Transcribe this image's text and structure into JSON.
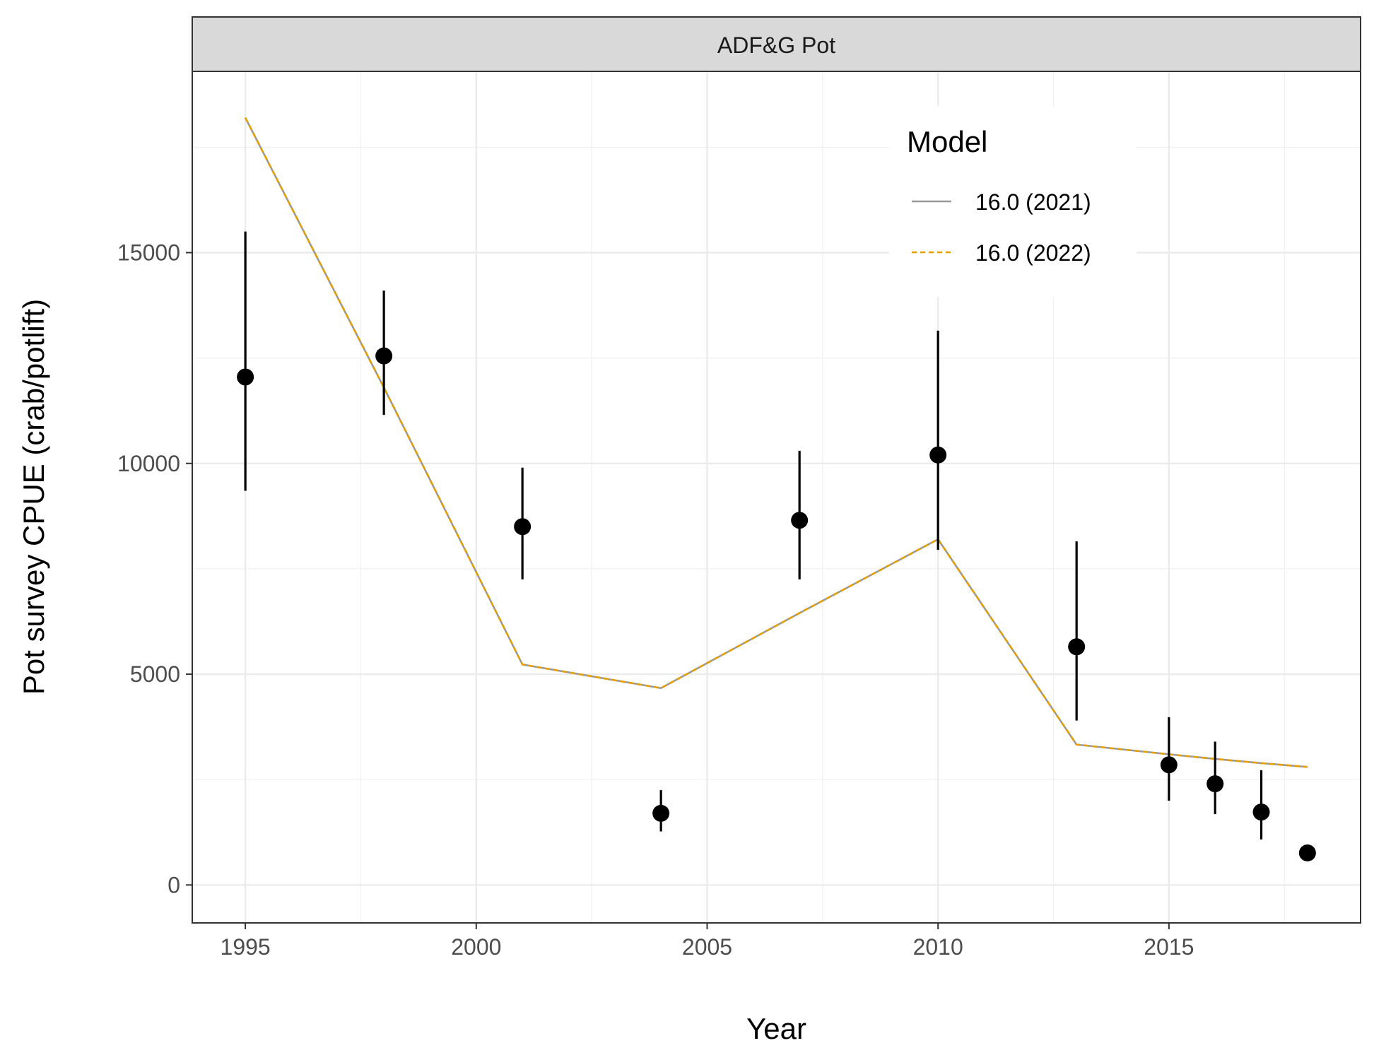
{
  "chart_data": {
    "type": "line",
    "panel_title": "ADF&G Pot",
    "xlabel": "Year",
    "ylabel": "Pot survey CPUE (crab/potlift)",
    "xlim": [
      1993.85,
      2019.15
    ],
    "ylim": [
      -900,
      19300
    ],
    "x_ticks": [
      1995,
      2000,
      2005,
      2010,
      2015
    ],
    "x_tick_labels": [
      "1995",
      "2000",
      "2005",
      "2010",
      "2015"
    ],
    "x_minor_ticks": [
      1997.5,
      2002.5,
      2007.5,
      2012.5,
      2017.5
    ],
    "y_ticks": [
      0,
      5000,
      10000,
      15000
    ],
    "y_tick_labels": [
      "0",
      "5000",
      "10000",
      "15000"
    ],
    "y_minor_ticks": [
      2500,
      7500,
      12500,
      17500
    ],
    "grid": true,
    "legend": {
      "title": "Model",
      "position": "top-right"
    },
    "observed": {
      "x": [
        1995,
        1998,
        2001,
        2004,
        2007,
        2010,
        2013,
        2015,
        2016,
        2017,
        2018
      ],
      "y": [
        12050,
        12550,
        8500,
        1700,
        8650,
        10200,
        5650,
        2850,
        2400,
        1730,
        760
      ],
      "lower": [
        9350,
        11150,
        7250,
        1270,
        7250,
        7950,
        3900,
        2000,
        1680,
        1080,
        760
      ],
      "upper": [
        15500,
        14100,
        9900,
        2250,
        10300,
        13150,
        8150,
        3980,
        3400,
        2720,
        760
      ]
    },
    "series": [
      {
        "name": "16.0 (2021)",
        "color": "#999999",
        "dash": "solid",
        "x": [
          1995,
          1998,
          2001,
          2004,
          2007,
          2010,
          2013,
          2015,
          2016,
          2017,
          2018
        ],
        "y": [
          18200,
          11800,
          5230,
          4670,
          6450,
          8200,
          3330,
          3100,
          2990,
          2890,
          2800
        ]
      },
      {
        "name": "16.0 (2022)",
        "color": "#E69F00",
        "dash": "dashed",
        "x": [
          1995,
          1998,
          2001,
          2004,
          2007,
          2010,
          2013,
          2015,
          2016,
          2017,
          2018
        ],
        "y": [
          18200,
          11800,
          5230,
          4670,
          6450,
          8200,
          3330,
          3100,
          2990,
          2890,
          2800
        ]
      }
    ]
  }
}
